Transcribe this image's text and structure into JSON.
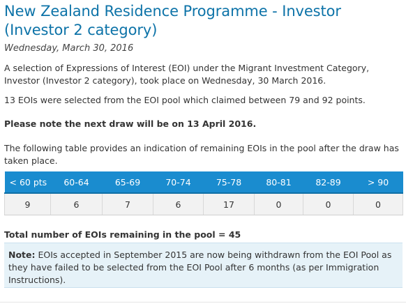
{
  "article": {
    "title": "New Zealand Residence Programme - Investor (Investor 2 category)",
    "date": "Wednesday, March 30, 2016",
    "paragraph1": "A selection of Expressions of Interest (EOI) under the Migrant Investment Category, Investor (Investor 2 category), took place on Wednesday, 30 March 2016.",
    "paragraph2": "13 EOIs were selected from the EOI pool which claimed between 79 and 92 points.",
    "next_draw": "Please note the next draw will be on 13 April 2016.",
    "table_intro": "The following table provides an indication of remaining EOIs in the pool after the draw has taken place.",
    "total": "Total number of EOIs remaining in the pool = 45",
    "note_label": "Note:",
    "note_text": " EOIs accepted in September 2015 are now being withdrawn from the EOI Pool as they have failed to be selected from the EOI Pool after 6 months (as per Immigration Instructions)."
  },
  "table": {
    "headers": [
      "< 60 pts",
      "60-64",
      "65-69",
      "70-74",
      "75-78",
      "80-81",
      "82-89",
      "> 90"
    ],
    "values": [
      "9",
      "6",
      "7",
      "6",
      "17",
      "0",
      "0",
      "0"
    ]
  },
  "colors": {
    "title": "#0d73a8",
    "table_header": "#1a8ccf",
    "table_cell": "#f2f2f2",
    "note_background": "#e6f2f8"
  }
}
